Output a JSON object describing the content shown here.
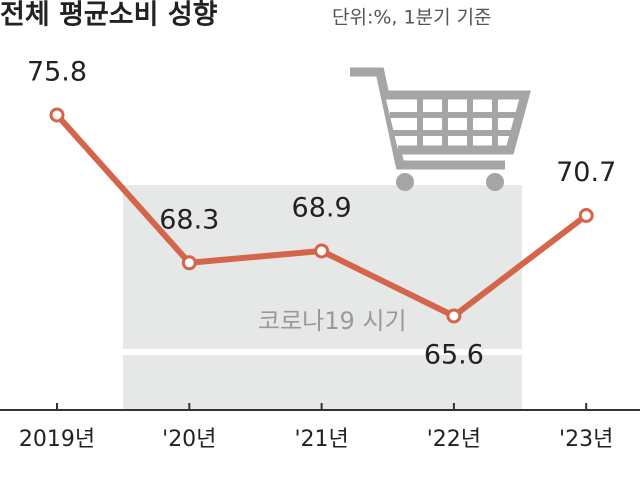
{
  "chart_data": {
    "type": "line",
    "title": "전체 평균소비 성향",
    "subtitle": "단위:%, 1분기 기준",
    "categories": [
      "2019년",
      "'20년",
      "'21년",
      "'22년",
      "'23년"
    ],
    "values": [
      75.8,
      68.3,
      68.9,
      65.6,
      70.7
    ],
    "color": "#d4654a",
    "annotation": "코로나19 시기"
  }
}
